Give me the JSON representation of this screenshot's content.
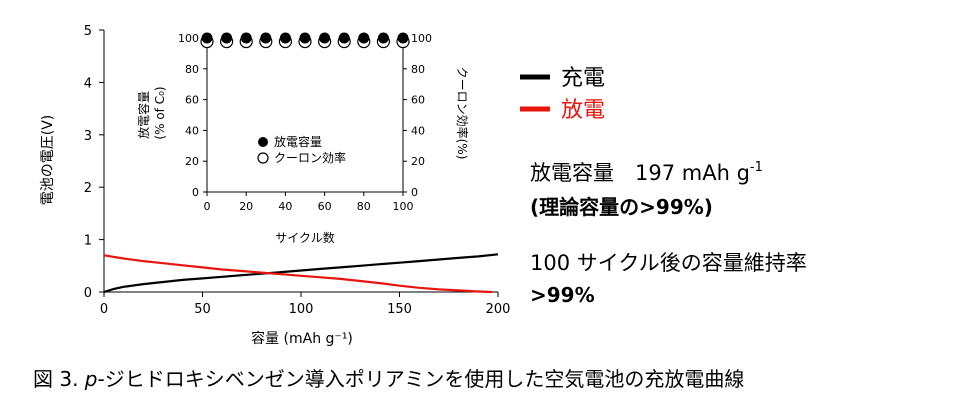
{
  "colors": {
    "charge": "#000000",
    "discharge": "#e8150e",
    "discharge_label": "#e8150e"
  },
  "chart_data": [
    {
      "type": "line",
      "xlabel": "容量 (mAh g⁻¹)",
      "ylabel": "電池の電圧(V)",
      "xlim": [
        0,
        200
      ],
      "ylim": [
        0,
        5
      ],
      "xticks": [
        "0",
        "50",
        "100",
        "150",
        "200"
      ],
      "yticks": [
        "0",
        "1",
        "2",
        "3",
        "4",
        "5"
      ],
      "legend": {
        "placement": "right",
        "entries": [
          "充電",
          "放電"
        ]
      },
      "series": [
        {
          "name": "充電",
          "x": [
            0,
            5,
            10,
            20,
            30,
            40,
            50,
            60,
            70,
            80,
            90,
            100,
            110,
            120,
            130,
            140,
            150,
            160,
            170,
            180,
            190,
            200
          ],
          "y": [
            0.0,
            0.06,
            0.1,
            0.15,
            0.19,
            0.23,
            0.26,
            0.29,
            0.32,
            0.35,
            0.38,
            0.41,
            0.44,
            0.47,
            0.5,
            0.53,
            0.56,
            0.59,
            0.62,
            0.65,
            0.68,
            0.72
          ]
        },
        {
          "name": "放電",
          "x": [
            0,
            10,
            20,
            30,
            40,
            50,
            60,
            70,
            80,
            90,
            100,
            110,
            120,
            130,
            140,
            150,
            160,
            170,
            180,
            190,
            197
          ],
          "y": [
            0.7,
            0.64,
            0.59,
            0.55,
            0.51,
            0.47,
            0.43,
            0.4,
            0.37,
            0.34,
            0.31,
            0.28,
            0.25,
            0.21,
            0.17,
            0.12,
            0.08,
            0.05,
            0.03,
            0.01,
            0.0
          ]
        }
      ]
    },
    {
      "type": "scatter",
      "xlabel": "サイクル数",
      "ylabel_left": "放電容量 (% of C₀)",
      "ylabel_right": "クーロン効率(%)",
      "xlim": [
        0,
        100
      ],
      "ylim": [
        0,
        100
      ],
      "xticks": [
        "0",
        "20",
        "40",
        "60",
        "80",
        "100"
      ],
      "yticks_left": [
        "0",
        "20",
        "40",
        "60",
        "80",
        "100"
      ],
      "yticks_right": [
        "0",
        "20",
        "40",
        "60",
        "80",
        "100"
      ],
      "legend": {
        "placement": "bottom-left",
        "entries": [
          "放電容量",
          "クーロン効率"
        ]
      },
      "series": [
        {
          "name": "放電容量",
          "marker": "filled-circle",
          "x": [
            0,
            10,
            20,
            30,
            40,
            50,
            60,
            70,
            80,
            90,
            100
          ],
          "y": [
            100,
            100,
            100,
            100,
            100,
            100,
            100,
            100,
            100,
            100,
            100
          ]
        },
        {
          "name": "クーロン効率",
          "marker": "open-circle",
          "x": [
            0,
            10,
            20,
            30,
            40,
            50,
            60,
            70,
            80,
            90,
            100
          ],
          "y": [
            99,
            99,
            99,
            99,
            99,
            99,
            99,
            99,
            99,
            99,
            99
          ]
        }
      ]
    }
  ],
  "annotations": {
    "line1": "放電容量　197 mAh g",
    "line1_sup": "-1",
    "line2": "(理論容量の>99%)",
    "line3": "100 サイクル後の容量維持率",
    "line4": ">99%"
  },
  "caption": "図 3. p-ジヒドロキシベンゼン導入ポリアミンを使用した空気電池の充放電曲線"
}
